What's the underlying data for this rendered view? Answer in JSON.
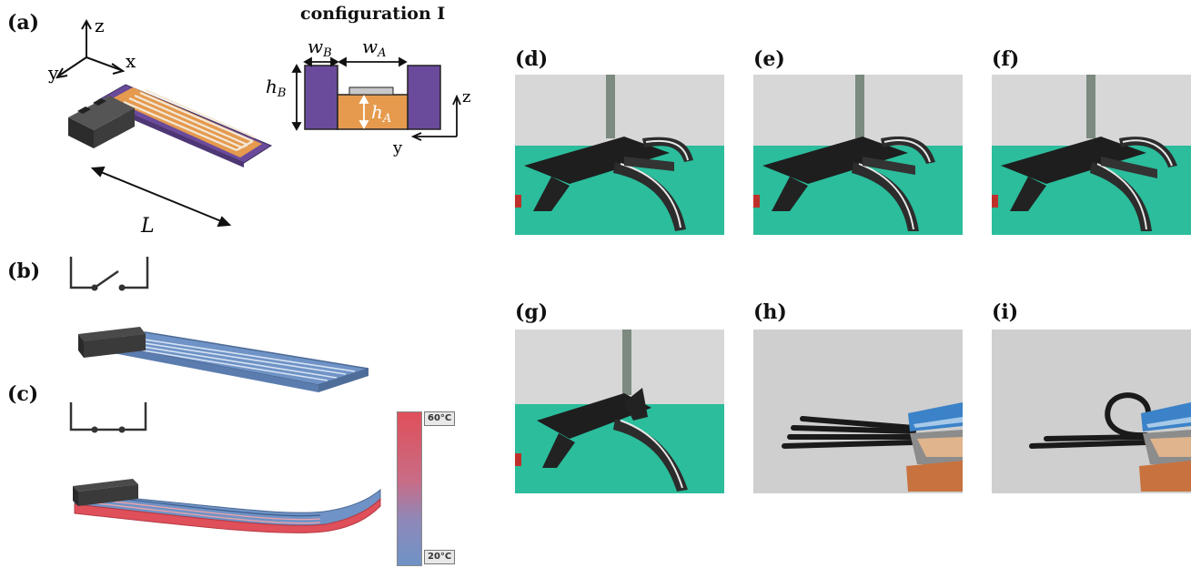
{
  "panels": {
    "a": "(a)",
    "b": "(b)",
    "c": "(c)",
    "d": "(d)",
    "e": "(e)",
    "f": "(f)",
    "g": "(g)",
    "h": "(h)",
    "i": "(i)"
  },
  "axes3d": {
    "x": "x",
    "y": "y",
    "z": "z"
  },
  "length_label": "L",
  "config": {
    "title": "configuration I",
    "wB": "w",
    "wB_sub": "B",
    "wA": "w",
    "wA_sub": "A",
    "hB": "h",
    "hB_sub": "B",
    "hA": "h",
    "hA_sub": "A",
    "axis_z": "z",
    "axis_y": "y"
  },
  "colorbar": {
    "max": "60°C",
    "min": "20°C"
  },
  "colors": {
    "purple": "#6a4b9b",
    "orange": "#e59a4e",
    "dark": "#3b3b3b",
    "cold_blue": "#6f93c6",
    "hot_red": "#e0505a",
    "teal": "#2bbd9c",
    "wall": "#d7d7d7"
  }
}
